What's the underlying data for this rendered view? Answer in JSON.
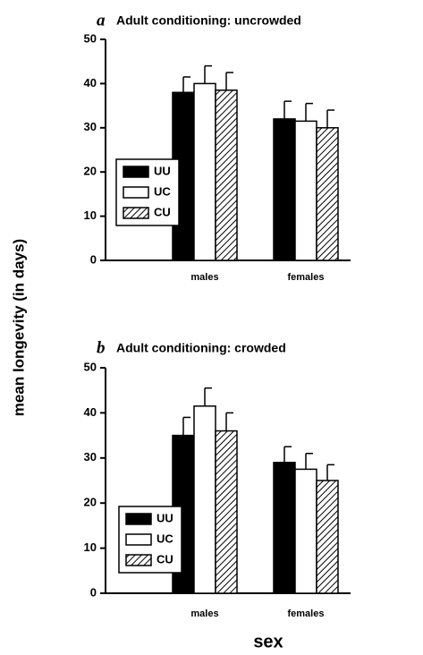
{
  "chart_data": [
    {
      "type": "bar",
      "letter": "a",
      "title": "Adult conditioning: uncrowded",
      "categories": [
        "males",
        "females"
      ],
      "series": [
        {
          "name": "UU",
          "color": "#000000",
          "values": [
            38,
            32
          ],
          "errors": [
            3.5,
            4
          ]
        },
        {
          "name": "UC",
          "color": "#ffffff",
          "values": [
            40,
            31.5
          ],
          "errors": [
            4,
            4
          ]
        },
        {
          "name": "CU",
          "color": "#ffffff",
          "hatch": true,
          "values": [
            38.5,
            30
          ],
          "errors": [
            4,
            4
          ]
        }
      ],
      "ylim": [
        0,
        50
      ],
      "yticks": [
        0,
        10,
        20,
        30,
        40,
        50
      ],
      "legend": "lower left"
    },
    {
      "type": "bar",
      "letter": "b",
      "title": "Adult conditioning: crowded",
      "categories": [
        "males",
        "females"
      ],
      "series": [
        {
          "name": "UU",
          "color": "#000000",
          "values": [
            35,
            29
          ],
          "errors": [
            4,
            3.5
          ]
        },
        {
          "name": "UC",
          "color": "#ffffff",
          "values": [
            41.5,
            27.5
          ],
          "errors": [
            4,
            3.5
          ]
        },
        {
          "name": "CU",
          "color": "#ffffff",
          "hatch": true,
          "values": [
            36,
            25
          ],
          "errors": [
            4,
            3.5
          ]
        }
      ],
      "ylim": [
        0,
        50
      ],
      "yticks": [
        0,
        10,
        20,
        30,
        40,
        50
      ],
      "legend": "lower left"
    }
  ],
  "ylabel": "mean longevity (in days)",
  "xlabel": "sex"
}
